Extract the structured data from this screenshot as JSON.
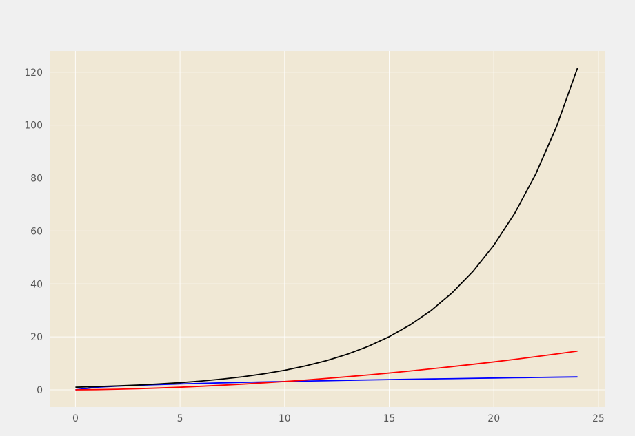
{
  "chart_data": {
    "type": "line",
    "title": "",
    "xlabel": "",
    "ylabel": "",
    "xlim": [
      -1.2,
      25.3
    ],
    "ylim": [
      -6.5,
      128
    ],
    "x_ticks": [
      0,
      5,
      10,
      15,
      20,
      25
    ],
    "y_ticks": [
      0,
      20,
      40,
      60,
      80,
      100,
      120
    ],
    "grid": true,
    "legend": "none",
    "colors": {
      "figure_background": "#f0f0f0",
      "plot_background": "#f0e8d5",
      "grid": "#ffffff",
      "tick_labels": "#555555"
    },
    "x": [
      0,
      1,
      2,
      3,
      4,
      5,
      6,
      7,
      8,
      9,
      10,
      11,
      12,
      13,
      14,
      15,
      16,
      17,
      18,
      19,
      20,
      21,
      22,
      23,
      24
    ],
    "series": [
      {
        "color": "#0000ff",
        "values": [
          0.0,
          1.0,
          1.41,
          1.73,
          2.0,
          2.24,
          2.45,
          2.65,
          2.83,
          3.0,
          3.16,
          3.32,
          3.46,
          3.61,
          3.74,
          3.87,
          4.0,
          4.12,
          4.24,
          4.36,
          4.47,
          4.58,
          4.69,
          4.8,
          4.9
        ]
      },
      {
        "color": "#ff0000",
        "values": [
          0.0,
          0.08,
          0.24,
          0.45,
          0.7,
          1.0,
          1.35,
          1.74,
          2.17,
          2.64,
          3.16,
          3.72,
          4.32,
          4.96,
          5.64,
          6.36,
          7.12,
          7.93,
          8.77,
          9.65,
          10.56,
          11.52,
          12.52,
          13.56,
          14.63
        ]
      },
      {
        "color": "#000000",
        "values": [
          1.0,
          1.22,
          1.49,
          1.82,
          2.23,
          2.72,
          3.32,
          4.06,
          4.95,
          6.05,
          7.39,
          9.03,
          11.02,
          13.46,
          16.44,
          20.09,
          24.53,
          29.96,
          36.6,
          44.7,
          54.6,
          66.69,
          81.45,
          99.48,
          121.51
        ]
      }
    ]
  }
}
